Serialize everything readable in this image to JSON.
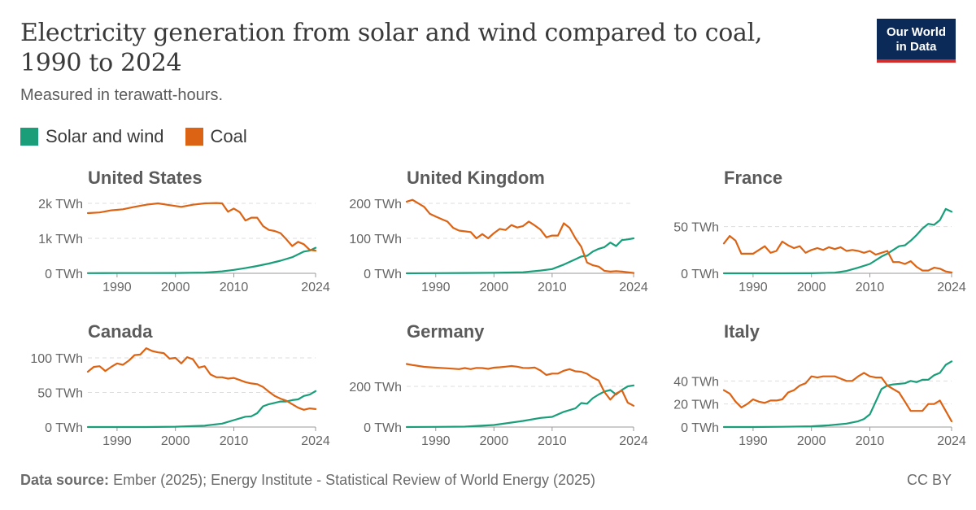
{
  "title": "Electricity generation from solar and wind compared to coal, 1990 to 2024",
  "title_line1": "Electricity generation from solar and wind compared to coal,",
  "title_line2": "1990 to 2024",
  "subtitle": "Measured in terawatt-hours.",
  "logo": {
    "line1": "Our World",
    "line2": "in Data"
  },
  "legend": [
    {
      "label": "Solar and wind",
      "color": "#1a9e7a"
    },
    {
      "label": "Coal",
      "color": "#dc6313"
    }
  ],
  "footer": {
    "source_label": "Data source:",
    "source_text": "Ember (2025); Energy Institute - Statistical Review of World Energy (2025)",
    "license": "CC BY"
  },
  "chart_data": [
    {
      "type": "line",
      "title": "United States",
      "x_range": [
        1985,
        2024
      ],
      "yticks": [
        0,
        1000,
        2000
      ],
      "ytick_labels": [
        "0 TWh",
        "1k TWh",
        "2k TWh"
      ],
      "ylim": [
        0,
        2000
      ],
      "xticks": [
        1990,
        2000,
        2010,
        2024
      ],
      "series": [
        {
          "name": "Solar and wind",
          "color": "#1a9e7a",
          "x": [
            1985,
            1990,
            1995,
            2000,
            2005,
            2008,
            2010,
            2012,
            2014,
            2016,
            2018,
            2020,
            2022,
            2023,
            2024
          ],
          "y": [
            5,
            6,
            8,
            10,
            20,
            55,
            98,
            150,
            210,
            280,
            360,
            460,
            620,
            650,
            730
          ]
        },
        {
          "name": "Coal",
          "color": "#dc6313",
          "x": [
            1985,
            1987,
            1989,
            1991,
            1993,
            1995,
            1997,
            1999,
            2001,
            2003,
            2005,
            2007,
            2008,
            2009,
            2010,
            2011,
            2012,
            2013,
            2014,
            2015,
            2016,
            2017,
            2018,
            2019,
            2020,
            2021,
            2022,
            2023,
            2024
          ],
          "y": [
            1720,
            1740,
            1800,
            1830,
            1900,
            1960,
            2000,
            1950,
            1900,
            1960,
            2000,
            2010,
            2000,
            1760,
            1850,
            1750,
            1510,
            1590,
            1590,
            1350,
            1240,
            1210,
            1150,
            970,
            780,
            900,
            830,
            670,
            650
          ]
        }
      ]
    },
    {
      "type": "line",
      "title": "United Kingdom",
      "x_range": [
        1985,
        2024
      ],
      "yticks": [
        0,
        100,
        200
      ],
      "ytick_labels": [
        "0 TWh",
        "100 TWh",
        "200 TWh"
      ],
      "ylim": [
        0,
        200
      ],
      "xticks": [
        1990,
        2000,
        2010,
        2024
      ],
      "series": [
        {
          "name": "Solar and wind",
          "color": "#1a9e7a",
          "x": [
            1985,
            1990,
            1995,
            2000,
            2005,
            2008,
            2010,
            2012,
            2014,
            2015,
            2016,
            2017,
            2018,
            2019,
            2020,
            2021,
            2022,
            2023,
            2024
          ],
          "y": [
            0,
            0.5,
            1,
            1.5,
            3,
            8,
            12,
            25,
            40,
            48,
            50,
            62,
            70,
            75,
            88,
            78,
            95,
            97,
            100
          ]
        },
        {
          "name": "Coal",
          "color": "#dc6313",
          "x": [
            1985,
            1986,
            1988,
            1989,
            1990,
            1991,
            1992,
            1993,
            1994,
            1995,
            1996,
            1997,
            1998,
            1999,
            2000,
            2001,
            2002,
            2003,
            2004,
            2005,
            2006,
            2007,
            2008,
            2009,
            2010,
            2011,
            2012,
            2013,
            2014,
            2015,
            2016,
            2017,
            2018,
            2019,
            2020,
            2021,
            2022,
            2023,
            2024
          ],
          "y": [
            205,
            210,
            190,
            170,
            162,
            155,
            148,
            130,
            122,
            120,
            118,
            100,
            112,
            100,
            115,
            127,
            124,
            138,
            131,
            135,
            148,
            137,
            125,
            103,
            108,
            108,
            143,
            130,
            100,
            76,
            31,
            23,
            19,
            7,
            5,
            6,
            5,
            3,
            1
          ]
        }
      ]
    },
    {
      "type": "line",
      "title": "France",
      "x_range": [
        1985,
        2024
      ],
      "yticks": [
        0,
        50
      ],
      "ytick_labels": [
        "0 TWh",
        "50 TWh"
      ],
      "ylim": [
        0,
        75
      ],
      "xticks": [
        1990,
        2000,
        2010,
        2024
      ],
      "series": [
        {
          "name": "Solar and wind",
          "color": "#1a9e7a",
          "x": [
            1985,
            1990,
            1995,
            2000,
            2004,
            2006,
            2008,
            2010,
            2012,
            2013,
            2015,
            2016,
            2017,
            2018,
            2019,
            2020,
            2021,
            2022,
            2023,
            2024
          ],
          "y": [
            0,
            0,
            0,
            0.1,
            0.7,
            2.5,
            6,
            10,
            18,
            21,
            29,
            30,
            35,
            41,
            48,
            53,
            52,
            57,
            69,
            66
          ]
        },
        {
          "name": "Coal",
          "color": "#dc6313",
          "x": [
            1985,
            1986,
            1987,
            1988,
            1990,
            1991,
            1992,
            1993,
            1994,
            1995,
            1996,
            1997,
            1998,
            1999,
            2000,
            2001,
            2002,
            2003,
            2004,
            2005,
            2006,
            2007,
            2008,
            2009,
            2010,
            2011,
            2012,
            2013,
            2014,
            2015,
            2016,
            2017,
            2018,
            2019,
            2020,
            2021,
            2022,
            2023,
            2024
          ],
          "y": [
            32,
            40,
            35,
            21,
            21,
            25,
            29,
            22,
            24,
            34,
            30,
            27,
            29,
            22,
            25,
            27,
            25,
            28,
            26,
            28,
            24,
            25,
            24,
            22,
            24,
            20,
            22,
            24,
            12,
            12,
            10,
            13,
            7,
            3,
            3,
            6,
            5,
            2,
            1
          ]
        }
      ]
    },
    {
      "type": "line",
      "title": "Canada",
      "x_range": [
        1985,
        2024
      ],
      "yticks": [
        0,
        50,
        100
      ],
      "ytick_labels": [
        "0 TWh",
        "50 TWh",
        "100 TWh"
      ],
      "ylim": [
        0,
        100
      ],
      "xticks": [
        1990,
        2000,
        2010,
        2024
      ],
      "series": [
        {
          "name": "Solar and wind",
          "color": "#1a9e7a",
          "x": [
            1985,
            1990,
            1995,
            2000,
            2005,
            2008,
            2010,
            2012,
            2013,
            2014,
            2015,
            2016,
            2017,
            2018,
            2019,
            2020,
            2021,
            2022,
            2023,
            2024
          ],
          "y": [
            0,
            0,
            0,
            0.5,
            2,
            5,
            10,
            15,
            15.5,
            20,
            30,
            33,
            35,
            37,
            37,
            39,
            40,
            45,
            47,
            52
          ]
        },
        {
          "name": "Coal",
          "color": "#dc6313",
          "x": [
            1985,
            1986,
            1987,
            1988,
            1989,
            1990,
            1991,
            1992,
            1993,
            1994,
            1995,
            1996,
            1997,
            1998,
            1999,
            2000,
            2001,
            2002,
            2003,
            2004,
            2005,
            2006,
            2007,
            2008,
            2009,
            2010,
            2011,
            2012,
            2013,
            2014,
            2015,
            2016,
            2017,
            2018,
            2019,
            2020,
            2021,
            2022,
            2023,
            2024
          ],
          "y": [
            80,
            87,
            88,
            81,
            87,
            92,
            90,
            96,
            104,
            105,
            114,
            110,
            108,
            107,
            99,
            100,
            92,
            101,
            98,
            86,
            88,
            76,
            72,
            72,
            70,
            71,
            68,
            65,
            63,
            62,
            58,
            51,
            45,
            41,
            38,
            33,
            28,
            25,
            27,
            26
          ]
        }
      ]
    },
    {
      "type": "line",
      "title": "Germany",
      "x_range": [
        1985,
        2024
      ],
      "yticks": [
        0,
        200
      ],
      "ytick_labels": [
        "0 TWh",
        "200 TWh"
      ],
      "ylim": [
        0,
        340
      ],
      "xticks": [
        1990,
        2000,
        2010,
        2024
      ],
      "series": [
        {
          "name": "Solar and wind",
          "color": "#1a9e7a",
          "x": [
            1985,
            1990,
            1995,
            2000,
            2005,
            2008,
            2010,
            2012,
            2014,
            2015,
            2016,
            2017,
            2018,
            2019,
            2020,
            2021,
            2022,
            2023,
            2024
          ],
          "y": [
            0,
            1,
            2,
            10,
            30,
            45,
            50,
            75,
            92,
            118,
            115,
            142,
            160,
            175,
            182,
            160,
            183,
            200,
            205
          ]
        },
        {
          "name": "Coal",
          "color": "#dc6313",
          "x": [
            1985,
            1986,
            1988,
            1990,
            1992,
            1994,
            1995,
            1996,
            1997,
            1998,
            1999,
            2000,
            2001,
            2002,
            2003,
            2004,
            2005,
            2006,
            2007,
            2008,
            2009,
            2010,
            2011,
            2012,
            2013,
            2014,
            2015,
            2016,
            2017,
            2018,
            2019,
            2020,
            2021,
            2022,
            2023,
            2024
          ],
          "y": [
            310,
            305,
            296,
            292,
            289,
            285,
            290,
            285,
            291,
            290,
            286,
            292,
            294,
            297,
            300,
            297,
            291,
            290,
            293,
            278,
            256,
            263,
            263,
            277,
            285,
            274,
            272,
            262,
            243,
            229,
            172,
            135,
            165,
            180,
            120,
            105
          ]
        }
      ]
    },
    {
      "type": "line",
      "title": "Italy",
      "x_range": [
        1985,
        2024
      ],
      "yticks": [
        0,
        20,
        40
      ],
      "ytick_labels": [
        "0 TWh",
        "20 TWh",
        "40 TWh"
      ],
      "ylim": [
        0,
        60
      ],
      "xticks": [
        1990,
        2000,
        2010,
        2024
      ],
      "series": [
        {
          "name": "Solar and wind",
          "color": "#1a9e7a",
          "x": [
            1985,
            1990,
            1995,
            2000,
            2003,
            2006,
            2008,
            2009,
            2010,
            2011,
            2012,
            2013,
            2014,
            2016,
            2017,
            2018,
            2019,
            2020,
            2021,
            2022,
            2023,
            2024
          ],
          "y": [
            0,
            0,
            0.2,
            0.6,
            1.5,
            3,
            5,
            7,
            11,
            22,
            33,
            36,
            37,
            38,
            40,
            39,
            41,
            41,
            45,
            47,
            54,
            57
          ]
        },
        {
          "name": "Coal",
          "color": "#dc6313",
          "x": [
            1985,
            1986,
            1987,
            1988,
            1989,
            1990,
            1991,
            1992,
            1993,
            1994,
            1995,
            1996,
            1997,
            1998,
            1999,
            2000,
            2001,
            2002,
            2003,
            2004,
            2005,
            2006,
            2007,
            2008,
            2009,
            2010,
            2011,
            2012,
            2013,
            2014,
            2015,
            2016,
            2017,
            2018,
            2019,
            2020,
            2021,
            2022,
            2023,
            2024
          ],
          "y": [
            32,
            29,
            22,
            17,
            20,
            24,
            22,
            21,
            23,
            23,
            24,
            30,
            32,
            36,
            38,
            44,
            43,
            44,
            44,
            44,
            42,
            40,
            40,
            44,
            47,
            44,
            43,
            43,
            36,
            33,
            30,
            22,
            14,
            14,
            14,
            20,
            20,
            23,
            14,
            5
          ]
        }
      ]
    }
  ]
}
